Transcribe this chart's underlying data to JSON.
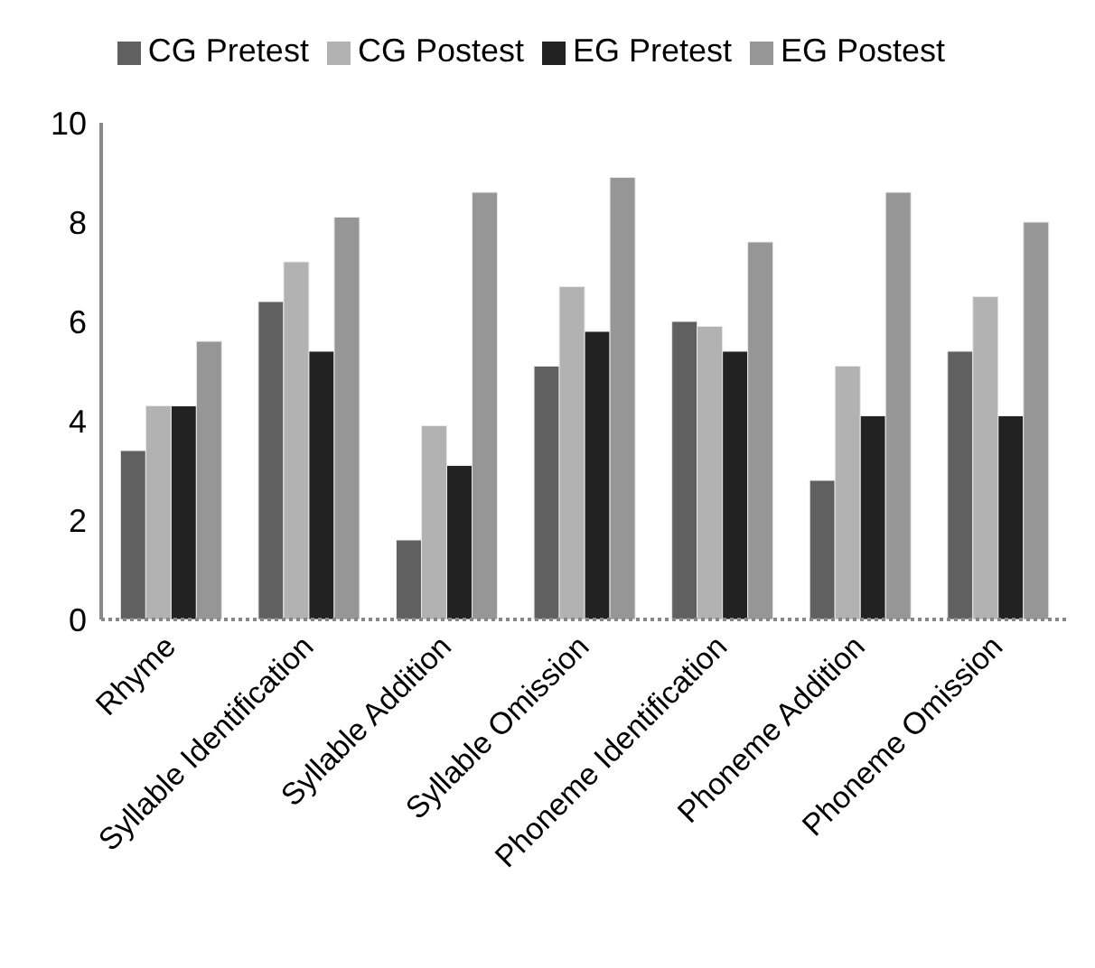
{
  "chart_data": {
    "type": "bar",
    "categories": [
      "Rhyme",
      "Syllable Identification",
      "Syllable Addition",
      "Syllable Omission",
      "Phoneme Identification",
      "Phoneme Addition",
      "Phoneme Omission"
    ],
    "series": [
      {
        "name": "CG Pretest",
        "color": "#606060",
        "values": [
          3.4,
          6.4,
          1.6,
          5.1,
          6.0,
          2.8,
          5.4
        ]
      },
      {
        "name": "CG Postest",
        "color": "#b2b2b2",
        "values": [
          4.3,
          7.2,
          3.9,
          6.7,
          5.9,
          5.1,
          6.5
        ]
      },
      {
        "name": "EG Pretest",
        "color": "#222222",
        "values": [
          4.3,
          5.4,
          3.1,
          5.8,
          5.4,
          4.1,
          4.1
        ]
      },
      {
        "name": "EG Postest",
        "color": "#969696",
        "values": [
          5.6,
          8.1,
          8.6,
          8.9,
          7.6,
          8.6,
          8.0
        ]
      }
    ],
    "ylim": [
      0,
      10
    ],
    "yticks": [
      0,
      2,
      4,
      6,
      8,
      10
    ],
    "grid": false,
    "legend": "top"
  }
}
